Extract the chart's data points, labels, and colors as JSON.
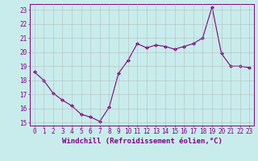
{
  "x": [
    0,
    1,
    2,
    3,
    4,
    5,
    6,
    7,
    8,
    9,
    10,
    11,
    12,
    13,
    14,
    15,
    16,
    17,
    18,
    19,
    20,
    21,
    22,
    23
  ],
  "y": [
    18.6,
    18.0,
    17.1,
    16.6,
    16.2,
    15.6,
    15.4,
    15.1,
    16.1,
    18.5,
    19.4,
    20.6,
    20.3,
    20.5,
    20.4,
    20.2,
    20.4,
    20.6,
    21.0,
    23.2,
    19.9,
    19.0,
    19.0,
    18.9
  ],
  "line_color": "#800080",
  "marker": "D",
  "marker_size": 2.0,
  "bg_color": "#c8ecec",
  "grid_color": "#b0b0b0",
  "xlabel": "Windchill (Refroidissement éolien,°C)",
  "xlim": [
    -0.5,
    23.5
  ],
  "ylim": [
    14.8,
    23.4
  ],
  "yticks": [
    15,
    16,
    17,
    18,
    19,
    20,
    21,
    22,
    23
  ],
  "xticks": [
    0,
    1,
    2,
    3,
    4,
    5,
    6,
    7,
    8,
    9,
    10,
    11,
    12,
    13,
    14,
    15,
    16,
    17,
    18,
    19,
    20,
    21,
    22,
    23
  ],
  "tick_color": "#800080",
  "label_color": "#800080",
  "spine_color": "#800080",
  "tick_fontsize": 5.5,
  "xlabel_fontsize": 6.5
}
